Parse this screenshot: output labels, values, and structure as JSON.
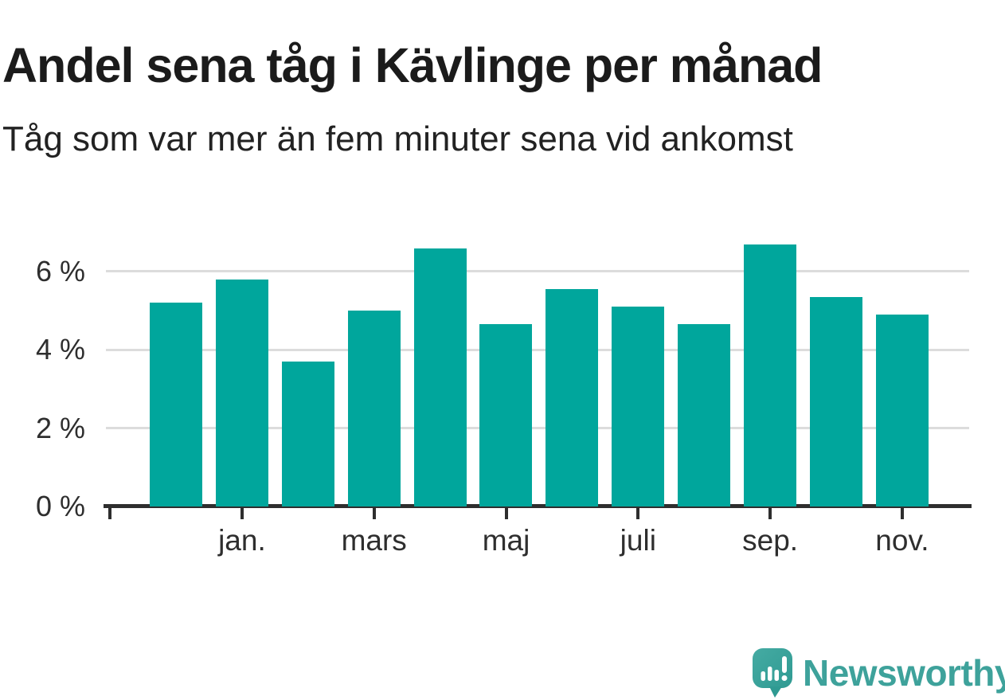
{
  "title": "Andel sena tåg i Kävlinge per månad",
  "subtitle": "Tåg som var mer än fem minuter sena vid ankomst",
  "chart_data": {
    "type": "bar",
    "categories": [
      "",
      "jan.",
      "",
      "mars",
      "",
      "maj",
      "",
      "juli",
      "",
      "sep.",
      "",
      "nov."
    ],
    "values": [
      5.2,
      5.8,
      3.7,
      5.0,
      6.6,
      4.65,
      5.55,
      5.1,
      4.65,
      6.7,
      5.35,
      4.9
    ],
    "unit": "%",
    "title": "Andel sena tåg i Kävlinge per månad",
    "subtitle": "Tåg som var mer än fem minuter sena vid ankomst",
    "xlabel": "",
    "ylabel": "",
    "ylim": [
      0,
      7.1
    ],
    "y_ticks": [
      0,
      2,
      4,
      6
    ],
    "y_tick_labels": [
      "0 %",
      "2 %",
      "4 %",
      "6 %"
    ],
    "x_tick_labels_visible": [
      "jan.",
      "mars",
      "maj",
      "juli",
      "sep.",
      "nov."
    ],
    "has_leading_unlabeled_tick": true,
    "grid": "horizontal",
    "legend": "none",
    "bar_color": "#00a69c",
    "axis_color": "#2e2e2e",
    "gridline_color": "#dcdcdc",
    "label_color": "#2e2e2e"
  },
  "footer": {
    "brand": "Newsworthy",
    "brand_color": "#3ea29b",
    "logo_icon": "newsworthy-speech-bubble-bar-chart-icon"
  }
}
